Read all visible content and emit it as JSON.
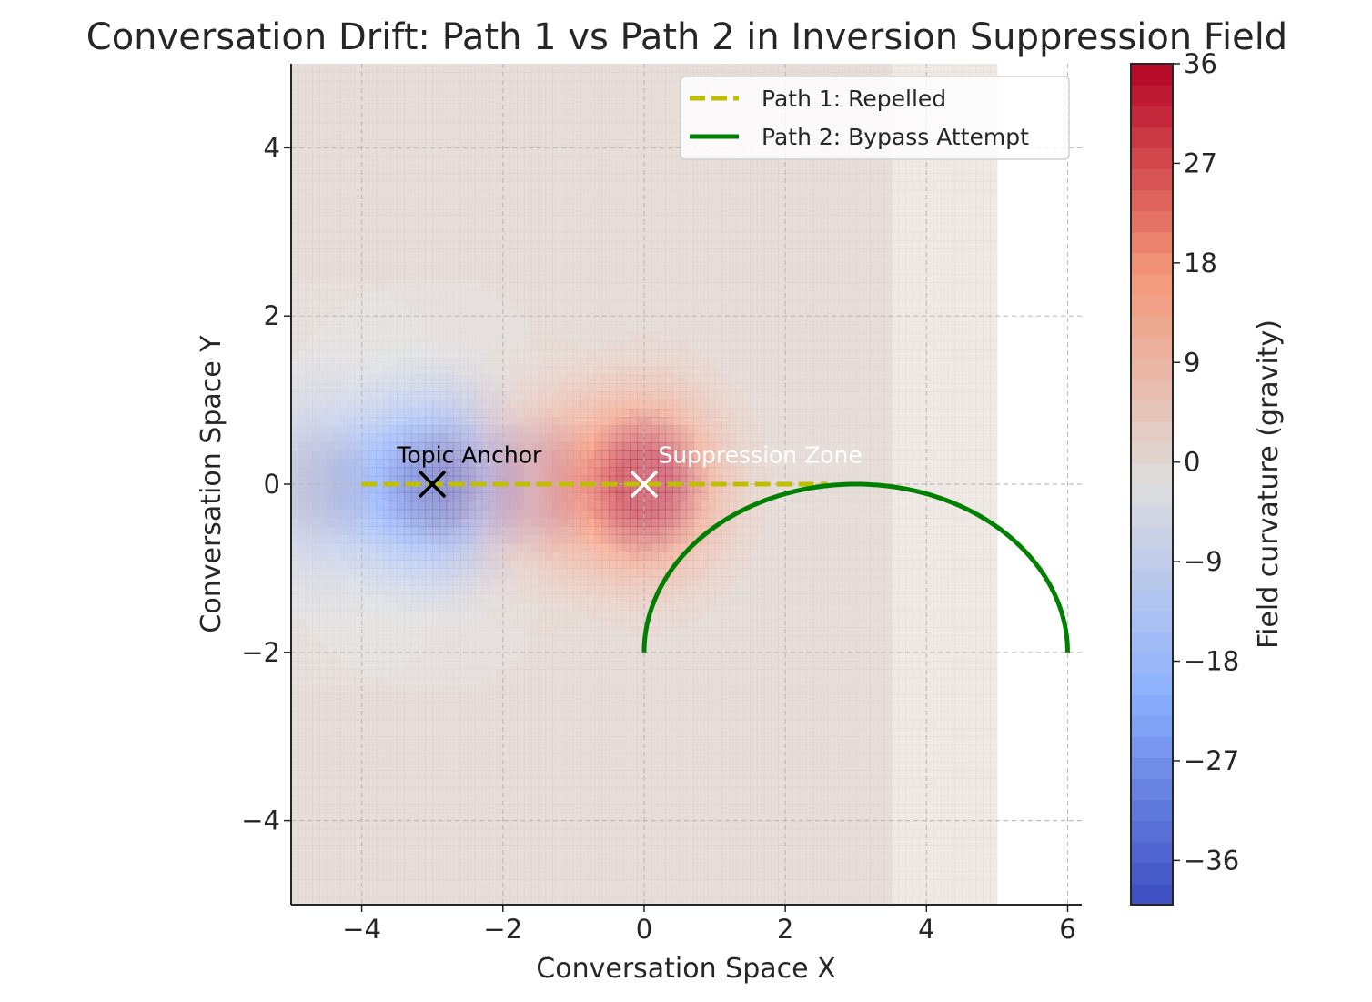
{
  "chart_data": {
    "type": "contour",
    "title": "Conversation Drift: Path 1 vs Path 2 in Inversion Suppression Field",
    "xlabel": "Conversation Space X",
    "ylabel": "Conversation Space Y",
    "xlim": [
      -5,
      6.2
    ],
    "ylim": [
      -5,
      5
    ],
    "x_ticks": [
      -4,
      -2,
      0,
      2,
      4,
      6
    ],
    "x_tick_labels": [
      "−4",
      "−2",
      "0",
      "2",
      "4",
      "6"
    ],
    "y_ticks": [
      -4,
      -2,
      0,
      2,
      4
    ],
    "y_tick_labels": [
      "−4",
      "−2",
      "0",
      "2",
      "4"
    ],
    "grid": true,
    "legend_position": "top-right",
    "field": {
      "x_range": [
        -5,
        5
      ],
      "y_range": [
        -5,
        5
      ],
      "shift_x": -1.5,
      "sources": [
        {
          "x": -3,
          "y": 0,
          "strength": -40,
          "spread": 1.0
        },
        {
          "x": 0,
          "y": 0,
          "strength": 40,
          "spread": 1.0
        }
      ]
    },
    "series": [
      {
        "name": "Path 1: Repelled",
        "style": "dashed",
        "color": "#bfbf00",
        "x": [
          -4,
          2.6
        ],
        "y": [
          0,
          0
        ]
      },
      {
        "name": "Path 2: Bypass Attempt",
        "style": "solid",
        "color": "#008000",
        "shape": "half-ellipse",
        "center": [
          3,
          -2
        ],
        "radius_x": 3,
        "radius_y": 2
      }
    ],
    "markers": [
      {
        "x": -3,
        "y": 0,
        "symbol": "x",
        "color": "#000000"
      },
      {
        "x": 0,
        "y": 0,
        "symbol": "x",
        "color": "#ffffff"
      }
    ],
    "annotations": [
      {
        "text": "Topic Anchor",
        "x": -3.5,
        "y": 0.3,
        "color": "#000000"
      },
      {
        "text": "Suppression Zone",
        "x": 0.2,
        "y": 0.3,
        "color": "#ffffff"
      }
    ],
    "colorbar": {
      "label": "Field curvature (gravity)",
      "range": [
        -40,
        36
      ],
      "ticks": [
        -36,
        -27,
        -18,
        -9,
        0,
        9,
        18,
        27,
        36
      ],
      "tick_labels": [
        "−36",
        "−27",
        "−18",
        "−9",
        "0",
        "9",
        "18",
        "27",
        "36"
      ],
      "colormap": "coolwarm"
    }
  }
}
